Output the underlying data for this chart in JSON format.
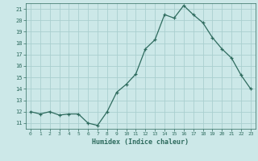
{
  "x": [
    0,
    1,
    2,
    3,
    4,
    5,
    6,
    7,
    8,
    9,
    10,
    11,
    12,
    13,
    14,
    15,
    16,
    17,
    18,
    19,
    20,
    21,
    22,
    23
  ],
  "y": [
    12.0,
    11.8,
    12.0,
    11.7,
    11.8,
    11.8,
    11.0,
    10.8,
    12.0,
    13.7,
    14.4,
    15.3,
    17.5,
    18.3,
    20.5,
    20.2,
    21.3,
    20.5,
    19.8,
    18.5,
    17.5,
    16.7,
    15.2,
    14.0
  ],
  "xlim": [
    -0.5,
    23.5
  ],
  "ylim": [
    10.5,
    21.5
  ],
  "yticks": [
    11,
    12,
    13,
    14,
    15,
    16,
    17,
    18,
    19,
    20,
    21
  ],
  "xticks": [
    0,
    1,
    2,
    3,
    4,
    5,
    6,
    7,
    8,
    9,
    10,
    11,
    12,
    13,
    14,
    15,
    16,
    17,
    18,
    19,
    20,
    21,
    22,
    23
  ],
  "xlabel": "Humidex (Indice chaleur)",
  "line_color": "#2e6b5e",
  "marker": "+",
  "bg_color": "#cce8e8",
  "grid_color": "#aacfcf",
  "tick_color": "#2e6b5e",
  "label_color": "#2e6b5e",
  "font_family": "monospace"
}
